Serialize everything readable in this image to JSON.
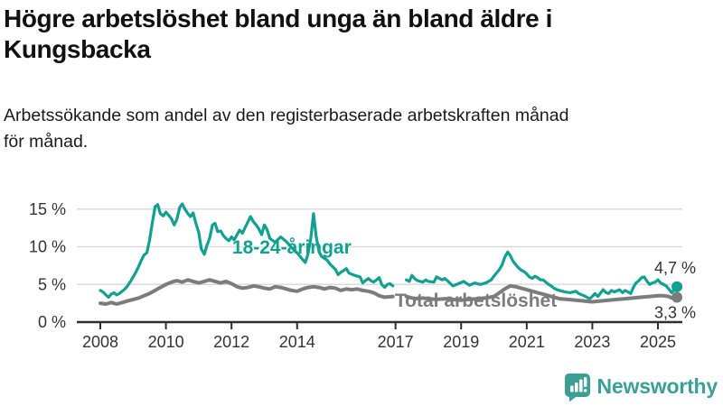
{
  "header": {
    "title_lines": [
      "Högre arbetslöshet bland unga än bland äldre i",
      "Kungsbacka"
    ],
    "subtitle_lines": [
      "Arbetssökande som andel av den registerbaserade arbetskraften månad",
      "för månad."
    ]
  },
  "colors": {
    "series_youth": "#12A191",
    "series_total": "#7C7C7C",
    "axis": "#2E2E2E",
    "axis_text": "#333333",
    "grid": "#DBDBDB",
    "logo": "#3AA094"
  },
  "chart_data": {
    "type": "line",
    "title": "Högre arbetslöshet bland unga än bland äldre i Kungsbacka",
    "subtitle": "Arbetssökande som andel av den registerbaserade arbetskraften månad för månad.",
    "y_unit": "%",
    "x_unit": "year, monthly values",
    "xlim": [
      2007.3,
      2025.9
    ],
    "ylim": [
      0,
      17
    ],
    "grid": "horizontal",
    "legend_position": "inline-labels",
    "series_break_note": "both series have a data gap around 2017",
    "x_ticks": [
      "2008",
      "2010",
      "2012",
      "2014",
      "2017",
      "2019",
      "2021",
      "2023",
      "2025"
    ],
    "y_ticks": [
      {
        "value": 0,
        "label": "0 %"
      },
      {
        "value": 5,
        "label": "5 %"
      },
      {
        "value": 10,
        "label": "10 %"
      },
      {
        "value": 15,
        "label": "15 %"
      }
    ],
    "series": [
      {
        "id": "youth",
        "name": "18-24-åringar",
        "color_key": "series_youth",
        "line_width": 3.2,
        "z_order": 2,
        "label_anchor": [
          2012.02,
          9.1
        ],
        "value_label_text": "4,7 %",
        "value_label_position": "above",
        "end_value": 4.7,
        "points": [
          [
            2008.0,
            4.2
          ],
          [
            2008.08,
            4.0
          ],
          [
            2008.17,
            3.6
          ],
          [
            2008.25,
            3.3
          ],
          [
            2008.33,
            3.7
          ],
          [
            2008.42,
            3.9
          ],
          [
            2008.5,
            3.6
          ],
          [
            2008.58,
            3.8
          ],
          [
            2008.67,
            4.1
          ],
          [
            2008.75,
            4.4
          ],
          [
            2008.83,
            4.8
          ],
          [
            2008.92,
            5.4
          ],
          [
            2009.0,
            6.0
          ],
          [
            2009.08,
            6.6
          ],
          [
            2009.17,
            7.4
          ],
          [
            2009.25,
            8.2
          ],
          [
            2009.33,
            8.9
          ],
          [
            2009.42,
            9.2
          ],
          [
            2009.5,
            10.8
          ],
          [
            2009.58,
            13.0
          ],
          [
            2009.67,
            15.3
          ],
          [
            2009.75,
            15.6
          ],
          [
            2009.83,
            14.4
          ],
          [
            2009.92,
            14.1
          ],
          [
            2010.0,
            14.6
          ],
          [
            2010.08,
            14.2
          ],
          [
            2010.17,
            13.7
          ],
          [
            2010.25,
            12.9
          ],
          [
            2010.33,
            13.6
          ],
          [
            2010.42,
            15.2
          ],
          [
            2010.5,
            15.7
          ],
          [
            2010.58,
            15.0
          ],
          [
            2010.67,
            14.4
          ],
          [
            2010.75,
            14.0
          ],
          [
            2010.83,
            14.5
          ],
          [
            2010.92,
            13.0
          ],
          [
            2011.0,
            11.9
          ],
          [
            2011.08,
            9.7
          ],
          [
            2011.17,
            9.0
          ],
          [
            2011.25,
            10.2
          ],
          [
            2011.33,
            11.1
          ],
          [
            2011.42,
            12.9
          ],
          [
            2011.5,
            13.1
          ],
          [
            2011.58,
            12.0
          ],
          [
            2011.67,
            12.1
          ],
          [
            2011.75,
            11.5
          ],
          [
            2011.83,
            11.1
          ],
          [
            2011.92,
            10.8
          ],
          [
            2012.0,
            11.3
          ],
          [
            2012.08,
            10.9
          ],
          [
            2012.17,
            11.6
          ],
          [
            2012.25,
            12.2
          ],
          [
            2012.33,
            11.8
          ],
          [
            2012.42,
            12.6
          ],
          [
            2012.5,
            13.3
          ],
          [
            2012.58,
            14.0
          ],
          [
            2012.67,
            13.3
          ],
          [
            2012.75,
            12.9
          ],
          [
            2012.83,
            12.4
          ],
          [
            2012.92,
            11.6
          ],
          [
            2013.0,
            12.9
          ],
          [
            2013.08,
            12.3
          ],
          [
            2013.17,
            11.1
          ],
          [
            2013.33,
            10.6
          ],
          [
            2013.5,
            11.3
          ],
          [
            2013.67,
            10.7
          ],
          [
            2013.83,
            9.9
          ],
          [
            2014.0,
            9.2
          ],
          [
            2014.17,
            8.3
          ],
          [
            2014.25,
            7.9
          ],
          [
            2014.33,
            9.0
          ],
          [
            2014.42,
            11.2
          ],
          [
            2014.5,
            14.4
          ],
          [
            2014.58,
            11.4
          ],
          [
            2014.67,
            9.3
          ],
          [
            2014.75,
            8.7
          ],
          [
            2014.92,
            8.2
          ],
          [
            2015.0,
            7.7
          ],
          [
            2015.17,
            7.0
          ],
          [
            2015.25,
            6.3
          ],
          [
            2015.33,
            6.6
          ],
          [
            2015.5,
            7.1
          ],
          [
            2015.58,
            6.5
          ],
          [
            2015.75,
            6.2
          ],
          [
            2015.92,
            6.0
          ],
          [
            2016.0,
            5.2
          ],
          [
            2016.08,
            5.5
          ],
          [
            2016.17,
            5.8
          ],
          [
            2016.25,
            5.5
          ],
          [
            2016.33,
            5.3
          ],
          [
            2016.42,
            5.6
          ],
          [
            2016.5,
            5.9
          ],
          [
            2016.58,
            5.0
          ],
          [
            2016.67,
            4.6
          ],
          [
            2016.75,
            5.0
          ],
          [
            2016.83,
            5.1
          ],
          [
            2016.92,
            4.8
          ],
          [
            2017.08,
            null
          ],
          [
            2017.33,
            5.6
          ],
          [
            2017.42,
            5.4
          ],
          [
            2017.5,
            6.2
          ],
          [
            2017.58,
            5.8
          ],
          [
            2017.67,
            5.5
          ],
          [
            2017.83,
            5.3
          ],
          [
            2017.92,
            5.6
          ],
          [
            2018.0,
            5.4
          ],
          [
            2018.17,
            5.3
          ],
          [
            2018.25,
            6.0
          ],
          [
            2018.42,
            5.6
          ],
          [
            2018.5,
            5.8
          ],
          [
            2018.58,
            5.5
          ],
          [
            2018.75,
            4.8
          ],
          [
            2018.92,
            5.1
          ],
          [
            2019.08,
            5.4
          ],
          [
            2019.25,
            4.9
          ],
          [
            2019.42,
            5.2
          ],
          [
            2019.58,
            5.0
          ],
          [
            2019.75,
            5.2
          ],
          [
            2019.92,
            5.6
          ],
          [
            2020.0,
            6.1
          ],
          [
            2020.17,
            7.0
          ],
          [
            2020.25,
            7.6
          ],
          [
            2020.33,
            8.6
          ],
          [
            2020.42,
            9.3
          ],
          [
            2020.5,
            8.8
          ],
          [
            2020.58,
            8.1
          ],
          [
            2020.67,
            7.6
          ],
          [
            2020.75,
            7.2
          ],
          [
            2020.83,
            6.9
          ],
          [
            2020.92,
            6.7
          ],
          [
            2021.0,
            6.4
          ],
          [
            2021.08,
            6.0
          ],
          [
            2021.17,
            5.8
          ],
          [
            2021.25,
            6.1
          ],
          [
            2021.33,
            5.9
          ],
          [
            2021.42,
            5.6
          ],
          [
            2021.5,
            5.6
          ],
          [
            2021.58,
            5.3
          ],
          [
            2021.67,
            5.0
          ],
          [
            2021.75,
            4.8
          ],
          [
            2021.83,
            4.5
          ],
          [
            2021.92,
            4.3
          ],
          [
            2022.0,
            4.2
          ],
          [
            2022.17,
            4.0
          ],
          [
            2022.33,
            3.9
          ],
          [
            2022.5,
            4.1
          ],
          [
            2022.58,
            3.8
          ],
          [
            2022.75,
            3.5
          ],
          [
            2022.92,
            3.1
          ],
          [
            2023.0,
            3.4
          ],
          [
            2023.08,
            3.8
          ],
          [
            2023.17,
            3.4
          ],
          [
            2023.33,
            4.3
          ],
          [
            2023.42,
            3.9
          ],
          [
            2023.5,
            3.8
          ],
          [
            2023.58,
            4.2
          ],
          [
            2023.67,
            4.0
          ],
          [
            2023.83,
            4.3
          ],
          [
            2023.92,
            3.9
          ],
          [
            2024.0,
            4.2
          ],
          [
            2024.17,
            3.8
          ],
          [
            2024.25,
            4.6
          ],
          [
            2024.33,
            5.2
          ],
          [
            2024.42,
            5.5
          ],
          [
            2024.5,
            5.9
          ],
          [
            2024.58,
            6.0
          ],
          [
            2024.67,
            5.4
          ],
          [
            2024.75,
            5.0
          ],
          [
            2024.83,
            5.2
          ],
          [
            2024.92,
            5.3
          ],
          [
            2025.0,
            5.6
          ],
          [
            2025.08,
            5.2
          ],
          [
            2025.17,
            5.0
          ],
          [
            2025.25,
            4.8
          ],
          [
            2025.33,
            4.4
          ],
          [
            2025.42,
            3.9
          ],
          [
            2025.5,
            4.3
          ],
          [
            2025.58,
            4.7
          ]
        ]
      },
      {
        "id": "total",
        "name": "Total arbetslöshet",
        "color_key": "series_total",
        "line_width": 4,
        "z_order": 1,
        "label_anchor": [
          2016.98,
          2.05
        ],
        "value_label_text": "3,3 %",
        "value_label_position": "below",
        "end_value": 3.3,
        "points": [
          [
            2008.0,
            2.5
          ],
          [
            2008.17,
            2.4
          ],
          [
            2008.33,
            2.6
          ],
          [
            2008.5,
            2.4
          ],
          [
            2008.67,
            2.6
          ],
          [
            2008.83,
            2.8
          ],
          [
            2009.0,
            3.0
          ],
          [
            2009.17,
            3.2
          ],
          [
            2009.33,
            3.5
          ],
          [
            2009.5,
            3.8
          ],
          [
            2009.67,
            4.2
          ],
          [
            2009.83,
            4.6
          ],
          [
            2010.0,
            5.0
          ],
          [
            2010.17,
            5.3
          ],
          [
            2010.33,
            5.5
          ],
          [
            2010.5,
            5.3
          ],
          [
            2010.67,
            5.6
          ],
          [
            2010.83,
            5.4
          ],
          [
            2011.0,
            5.2
          ],
          [
            2011.17,
            5.4
          ],
          [
            2011.33,
            5.6
          ],
          [
            2011.5,
            5.4
          ],
          [
            2011.67,
            5.2
          ],
          [
            2011.83,
            5.4
          ],
          [
            2012.0,
            5.1
          ],
          [
            2012.17,
            4.7
          ],
          [
            2012.33,
            4.5
          ],
          [
            2012.5,
            4.6
          ],
          [
            2012.67,
            4.8
          ],
          [
            2012.83,
            4.7
          ],
          [
            2013.0,
            4.5
          ],
          [
            2013.17,
            4.4
          ],
          [
            2013.33,
            4.7
          ],
          [
            2013.5,
            4.6
          ],
          [
            2013.67,
            4.4
          ],
          [
            2013.83,
            4.2
          ],
          [
            2014.0,
            4.1
          ],
          [
            2014.17,
            4.4
          ],
          [
            2014.33,
            4.6
          ],
          [
            2014.5,
            4.7
          ],
          [
            2014.67,
            4.6
          ],
          [
            2014.83,
            4.4
          ],
          [
            2015.0,
            4.6
          ],
          [
            2015.17,
            4.5
          ],
          [
            2015.33,
            4.2
          ],
          [
            2015.5,
            4.4
          ],
          [
            2015.67,
            4.3
          ],
          [
            2015.83,
            4.4
          ],
          [
            2016.0,
            4.2
          ],
          [
            2016.17,
            4.1
          ],
          [
            2016.33,
            3.9
          ],
          [
            2016.5,
            3.5
          ],
          [
            2016.67,
            3.3
          ],
          [
            2016.92,
            3.4
          ],
          [
            2017.08,
            null
          ],
          [
            2017.33,
            3.4
          ],
          [
            2017.5,
            3.2
          ],
          [
            2017.67,
            3.1
          ],
          [
            2017.83,
            3.2
          ],
          [
            2018.0,
            3.1
          ],
          [
            2018.25,
            3.0
          ],
          [
            2018.5,
            3.1
          ],
          [
            2018.75,
            3.0
          ],
          [
            2019.0,
            2.9
          ],
          [
            2019.25,
            3.0
          ],
          [
            2019.5,
            3.1
          ],
          [
            2019.75,
            3.2
          ],
          [
            2020.0,
            3.4
          ],
          [
            2020.17,
            3.9
          ],
          [
            2020.33,
            4.4
          ],
          [
            2020.5,
            4.8
          ],
          [
            2020.67,
            4.7
          ],
          [
            2020.83,
            4.5
          ],
          [
            2021.0,
            4.3
          ],
          [
            2021.17,
            4.1
          ],
          [
            2021.33,
            3.9
          ],
          [
            2021.5,
            3.7
          ],
          [
            2021.67,
            3.5
          ],
          [
            2021.83,
            3.3
          ],
          [
            2022.0,
            3.1
          ],
          [
            2022.25,
            3.0
          ],
          [
            2022.5,
            2.9
          ],
          [
            2022.75,
            2.8
          ],
          [
            2023.0,
            2.7
          ],
          [
            2023.25,
            2.8
          ],
          [
            2023.5,
            2.9
          ],
          [
            2023.75,
            3.0
          ],
          [
            2024.0,
            3.1
          ],
          [
            2024.25,
            3.2
          ],
          [
            2024.5,
            3.3
          ],
          [
            2024.75,
            3.4
          ],
          [
            2025.0,
            3.5
          ],
          [
            2025.17,
            3.5
          ],
          [
            2025.33,
            3.4
          ],
          [
            2025.42,
            3.2
          ],
          [
            2025.5,
            3.2
          ],
          [
            2025.58,
            3.3
          ]
        ]
      }
    ]
  },
  "footer": {
    "brand": "Newsworthy"
  }
}
